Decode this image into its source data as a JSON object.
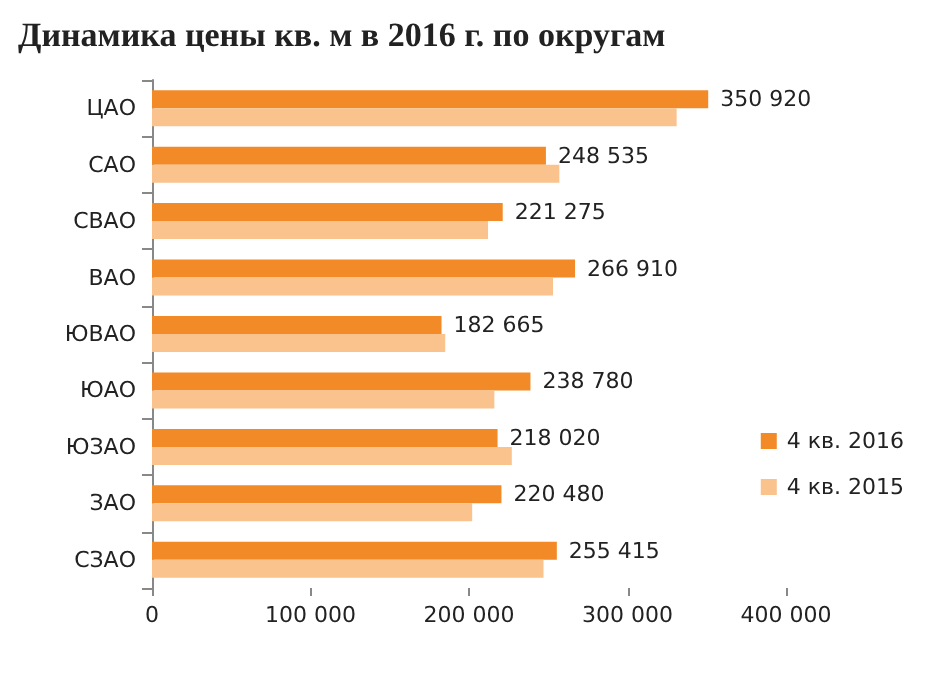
{
  "chart_data": {
    "type": "bar",
    "orientation": "horizontal",
    "title": "Динамика цены кв. м в 2016 г. по округам",
    "categories": [
      "ЦАО",
      "САО",
      "СВАО",
      "ВАО",
      "ЮВАО",
      "ЮАО",
      "ЮЗАО",
      "ЗАО",
      "СЗАО"
    ],
    "series": [
      {
        "name": "4 кв. 2016",
        "color": "#f28b27",
        "values": [
          350920,
          248535,
          221275,
          266910,
          182665,
          238780,
          218020,
          220480,
          255415
        ],
        "value_labels": [
          "350 920",
          "248 535",
          "221 275",
          "266 910",
          "182 665",
          "238 780",
          "218 020",
          "220 480",
          "255 415"
        ]
      },
      {
        "name": "4 кв. 2015",
        "color": "#fac28d",
        "values": [
          331000,
          257000,
          212000,
          253000,
          185000,
          216000,
          227000,
          202000,
          247000
        ]
      }
    ],
    "xlim": [
      0,
      400000
    ],
    "xticks": [
      0,
      {
        "value": 100000,
        "label": "100 000"
      },
      {
        "value": 200000,
        "label": "200 000"
      },
      {
        "value": 300000,
        "label": "300 000"
      },
      {
        "value": 400000,
        "label": "400 000"
      }
    ],
    "grid": false,
    "legend": "right"
  }
}
